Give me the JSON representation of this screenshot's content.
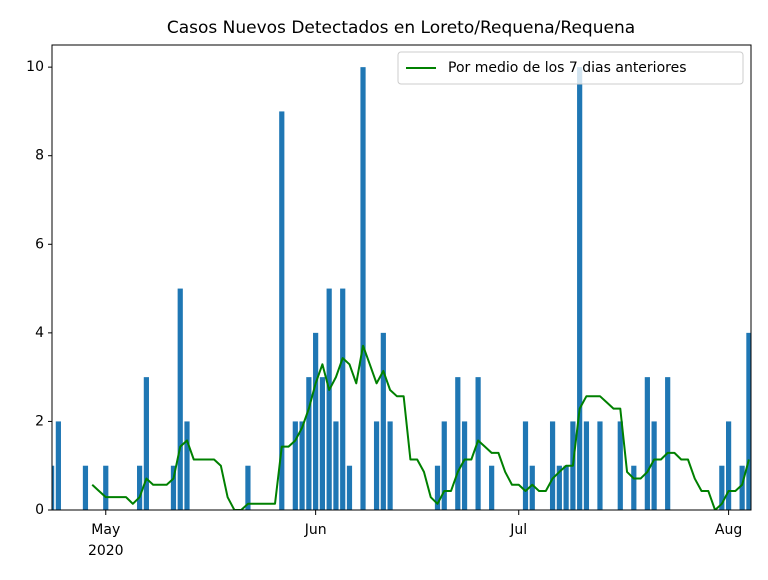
{
  "chart_data": {
    "type": "bar",
    "title": "Casos Nuevos Detectados en Loreto/Requena/Requena",
    "categories": [
      null,
      null,
      null,
      null,
      null,
      null,
      null,
      null,
      "May",
      null,
      null,
      null,
      null,
      null,
      null,
      null,
      null,
      null,
      null,
      null,
      null,
      null,
      null,
      null,
      null,
      null,
      null,
      null,
      null,
      null,
      null,
      null,
      null,
      null,
      null,
      null,
      null,
      null,
      null,
      "Jun",
      null,
      null,
      null,
      null,
      null,
      null,
      null,
      null,
      null,
      null,
      null,
      null,
      null,
      null,
      null,
      null,
      null,
      null,
      null,
      null,
      null,
      null,
      null,
      null,
      null,
      null,
      null,
      null,
      null,
      "Jul",
      null,
      null,
      null,
      null,
      null,
      null,
      null,
      null,
      null,
      null,
      null,
      null,
      null,
      null,
      null,
      null,
      null,
      null,
      null,
      null,
      null,
      null,
      null,
      null,
      null,
      null,
      null,
      null,
      null,
      null,
      "Aug",
      null,
      null,
      null
    ],
    "year_label": "2020",
    "series": [
      {
        "type": "bar",
        "color": "#1f77b4",
        "values": [
          1,
          2,
          0,
          0,
          0,
          1,
          0,
          0,
          1,
          0,
          0,
          0,
          0,
          1,
          3,
          0,
          0,
          0,
          1,
          5,
          2,
          0,
          0,
          0,
          0,
          0,
          0,
          0,
          0,
          1,
          0,
          0,
          0,
          0,
          9,
          0,
          2,
          2,
          3,
          4,
          3,
          5,
          2,
          5,
          1,
          0,
          10,
          0,
          2,
          4,
          2,
          0,
          0,
          0,
          0,
          0,
          0,
          1,
          2,
          0,
          3,
          2,
          0,
          3,
          0,
          1,
          0,
          0,
          0,
          0,
          2,
          1,
          0,
          0,
          2,
          1,
          1,
          2,
          10,
          2,
          0,
          2,
          0,
          0,
          2,
          0,
          1,
          0,
          3,
          2,
          0,
          3,
          0,
          0,
          0,
          0,
          0,
          0,
          0,
          1,
          2,
          0,
          1,
          4
        ]
      },
      {
        "type": "line",
        "name": "Por medio de los 7 dias anteriores",
        "color": "#008000",
        "values": [
          null,
          null,
          null,
          null,
          null,
          null,
          0.57,
          0.43,
          0.29,
          0.29,
          0.29,
          0.29,
          0.14,
          0.29,
          0.71,
          0.57,
          0.57,
          0.57,
          0.71,
          1.43,
          1.57,
          1.14,
          1.14,
          1.14,
          1.14,
          1,
          0.29,
          0,
          0,
          0.14,
          0.14,
          0.14,
          0.14,
          0.14,
          1.43,
          1.43,
          1.57,
          1.86,
          2.29,
          2.86,
          3.29,
          2.71,
          3,
          3.43,
          3.29,
          2.86,
          3.71,
          3.29,
          2.86,
          3.14,
          2.71,
          2.57,
          2.57,
          1.14,
          1.14,
          0.86,
          0.29,
          0.14,
          0.43,
          0.43,
          0.86,
          1.14,
          1.14,
          1.57,
          1.43,
          1.29,
          1.29,
          0.86,
          0.57,
          0.57,
          0.43,
          0.57,
          0.43,
          0.43,
          0.71,
          0.86,
          1,
          1,
          2.29,
          2.57,
          2.57,
          2.57,
          2.43,
          2.29,
          2.29,
          0.86,
          0.71,
          0.71,
          0.86,
          1.14,
          1.14,
          1.29,
          1.29,
          1.14,
          1.14,
          0.71,
          0.43,
          0.43,
          0,
          0.14,
          0.43,
          0.43,
          0.57,
          1.14
        ]
      }
    ],
    "ylim": [
      0,
      10.5
    ],
    "yticks": [
      0,
      2,
      4,
      6,
      8,
      10
    ],
    "legend": "upper right"
  }
}
